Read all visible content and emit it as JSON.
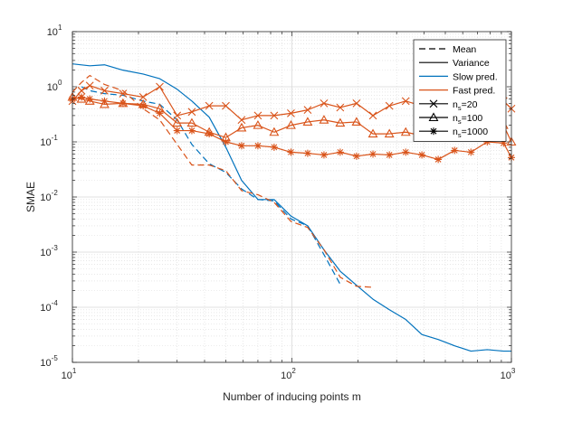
{
  "chart_data": {
    "type": "line",
    "xscale": "log",
    "yscale": "log",
    "xlabel": "Number of inducing points m",
    "ylabel": "SMAE",
    "xlim": [
      10,
      1000
    ],
    "ylim": [
      1e-05,
      10
    ],
    "grid": true,
    "minor_grid": true,
    "x_ticks": [
      {
        "value": 10,
        "base": "10",
        "exp": "1"
      },
      {
        "value": 100,
        "base": "10",
        "exp": "2"
      },
      {
        "value": 1000,
        "base": "10",
        "exp": "3"
      }
    ],
    "y_ticks": [
      {
        "value": 1e-05,
        "base": "10",
        "exp": "-5"
      },
      {
        "value": 0.0001,
        "base": "10",
        "exp": "-4"
      },
      {
        "value": 0.001,
        "base": "10",
        "exp": "-3"
      },
      {
        "value": 0.01,
        "base": "10",
        "exp": "-2"
      },
      {
        "value": 0.1,
        "base": "10",
        "exp": "-1"
      },
      {
        "value": 1,
        "base": "10",
        "exp": "0"
      },
      {
        "value": 10,
        "base": "10",
        "exp": "1"
      }
    ],
    "colors": {
      "slow": "#0072BD",
      "fast": "#D95319",
      "axis": "#262626",
      "grid": "#d9d9d9"
    },
    "legend": {
      "position": "top-right",
      "entries": [
        {
          "label": "Mean",
          "style": "dashed",
          "color": "#000000"
        },
        {
          "label": "Variance",
          "style": "solid",
          "color": "#000000"
        },
        {
          "label": "Slow pred.",
          "style": "solid",
          "color": "#0072BD"
        },
        {
          "label": "Fast pred.",
          "style": "solid",
          "color": "#D95319"
        },
        {
          "label": "n",
          "sub": "s",
          "suffix": "=20",
          "style": "solid",
          "marker": "x",
          "color": "#000000"
        },
        {
          "label": "n",
          "sub": "s",
          "suffix": "=100",
          "style": "solid",
          "marker": "triangle",
          "color": "#000000"
        },
        {
          "label": "n",
          "sub": "s",
          "suffix": "=1000",
          "style": "solid",
          "marker": "star",
          "color": "#000000"
        }
      ]
    },
    "series": [
      {
        "name": "Slow pred. mean",
        "color": "#0072BD",
        "dash": "7,4",
        "marker": null,
        "x": [
          11,
          12,
          14,
          17,
          21,
          25,
          30,
          35,
          42,
          50,
          59,
          70,
          83,
          99,
          118,
          140,
          166
        ],
        "y": [
          1.0,
          0.85,
          0.75,
          0.7,
          0.55,
          0.48,
          0.25,
          0.09,
          0.04,
          0.028,
          0.014,
          0.009,
          0.0085,
          0.004,
          0.003,
          0.0009,
          0.00026
        ]
      },
      {
        "name": "Slow pred. variance",
        "color": "#0072BD",
        "dash": null,
        "marker": null,
        "x": [
          10,
          12,
          14,
          17,
          21,
          25,
          30,
          35,
          42,
          50,
          59,
          70,
          83,
          99,
          118,
          140,
          166,
          197,
          234,
          278,
          330,
          391,
          464,
          551,
          654,
          776,
          921,
          1000
        ],
        "y": [
          2.6,
          2.4,
          2.5,
          2.0,
          1.7,
          1.4,
          0.9,
          0.55,
          0.28,
          0.08,
          0.02,
          0.009,
          0.009,
          0.0045,
          0.003,
          0.0011,
          0.00045,
          0.00025,
          0.00014,
          9e-05,
          6e-05,
          3.2e-05,
          2.6e-05,
          2e-05,
          1.6e-05,
          1.7e-05,
          1.6e-05,
          1.6e-05
        ]
      },
      {
        "name": "Fast pred. mean",
        "color": "#D95319",
        "dash": "7,4",
        "marker": null,
        "x": [
          10,
          11,
          12,
          14,
          17,
          21,
          25,
          30,
          35,
          42,
          50,
          59,
          70,
          83,
          99,
          118,
          140,
          166,
          197,
          234
        ],
        "y": [
          0.8,
          1.2,
          1.6,
          1.1,
          0.85,
          0.4,
          0.25,
          0.09,
          0.038,
          0.038,
          0.03,
          0.013,
          0.011,
          0.008,
          0.0036,
          0.0028,
          0.0011,
          0.00035,
          0.00024,
          0.00023
        ]
      },
      {
        "name": "Fast pred. variance n_s=20",
        "color": "#D95319",
        "dash": null,
        "marker": "x",
        "x": [
          10,
          11,
          12,
          14,
          17,
          21,
          25,
          30,
          35,
          42,
          50,
          59,
          70,
          83,
          99,
          118,
          140,
          166,
          197,
          234,
          278,
          330,
          391,
          464,
          551,
          654,
          776,
          921,
          1000
        ],
        "y": [
          0.55,
          0.85,
          1.05,
          0.85,
          0.75,
          0.65,
          1.0,
          0.3,
          0.35,
          0.45,
          0.45,
          0.25,
          0.3,
          0.3,
          0.33,
          0.38,
          0.5,
          0.42,
          0.5,
          0.3,
          0.45,
          0.55,
          0.45,
          0.45,
          0.5,
          0.55,
          0.45,
          0.55,
          0.4
        ]
      },
      {
        "name": "Fast pred. variance n_s=100",
        "color": "#D95319",
        "dash": null,
        "marker": "triangle",
        "x": [
          10,
          11,
          12,
          14,
          17,
          21,
          25,
          30,
          35,
          42,
          50,
          59,
          70,
          83,
          99,
          118,
          140,
          166,
          197,
          234,
          278,
          330,
          391,
          464,
          551,
          654,
          776,
          921,
          1000
        ],
        "y": [
          0.65,
          0.6,
          0.55,
          0.48,
          0.5,
          0.48,
          0.4,
          0.22,
          0.22,
          0.15,
          0.12,
          0.18,
          0.2,
          0.15,
          0.2,
          0.23,
          0.25,
          0.22,
          0.23,
          0.14,
          0.14,
          0.15,
          0.13,
          0.2,
          0.17,
          0.15,
          0.16,
          0.2,
          0.1
        ]
      },
      {
        "name": "Fast pred. variance n_s=1000",
        "color": "#D95319",
        "dash": null,
        "marker": "star",
        "x": [
          10,
          11,
          12,
          14,
          17,
          21,
          25,
          30,
          35,
          42,
          50,
          59,
          70,
          83,
          99,
          118,
          140,
          166,
          197,
          234,
          278,
          330,
          391,
          464,
          551,
          654,
          776,
          921,
          1000
        ],
        "y": [
          0.6,
          0.65,
          0.6,
          0.55,
          0.5,
          0.45,
          0.33,
          0.16,
          0.16,
          0.14,
          0.1,
          0.085,
          0.085,
          0.08,
          0.065,
          0.062,
          0.058,
          0.065,
          0.055,
          0.06,
          0.058,
          0.065,
          0.058,
          0.048,
          0.07,
          0.065,
          0.1,
          0.095,
          0.052
        ]
      }
    ]
  }
}
